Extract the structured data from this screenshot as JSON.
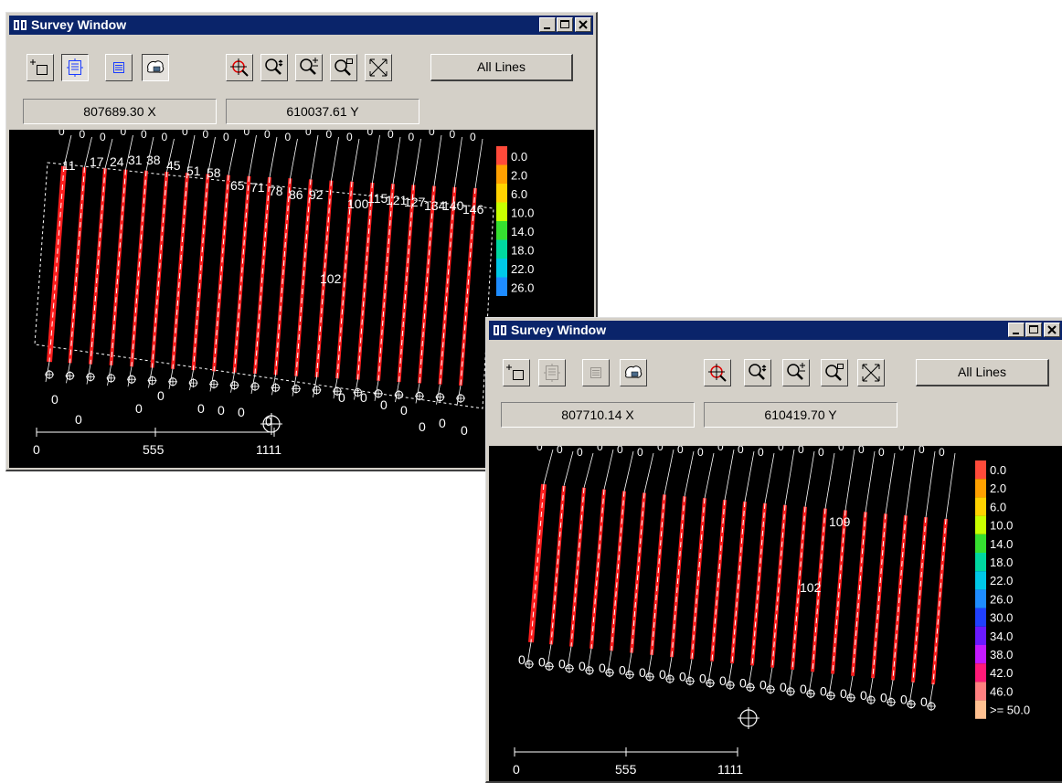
{
  "windows": [
    {
      "title": "Survey Window",
      "all_lines_label": "All Lines",
      "x_coord": "807689.30 X",
      "y_coord": "610037.61 Y",
      "toolbar_pressed": [
        false,
        true,
        false,
        true
      ],
      "line_numbers": [
        "11",
        "17",
        "24",
        "31",
        "38",
        "45",
        "51",
        "58",
        "65",
        "71",
        "78",
        "86",
        "92",
        "100",
        "115",
        "121",
        "127",
        "134",
        "140",
        "146"
      ],
      "center_label": "102",
      "end_label": "0",
      "legend": [
        "0.0",
        "2.0",
        "6.0",
        "10.0",
        "14.0",
        "18.0",
        "22.0",
        "26.0"
      ],
      "scale_bar": [
        "0",
        "555",
        "1111"
      ]
    },
    {
      "title": "Survey Window",
      "all_lines_label": "All Lines",
      "x_coord": "807710.14 X",
      "y_coord": "610419.70 Y",
      "toolbar_pressed": [
        false,
        false,
        false,
        false
      ],
      "line_label_a": "109",
      "center_label": "102",
      "end_label": "0",
      "legend": [
        "0.0",
        "2.0",
        "6.0",
        "10.0",
        "14.0",
        "18.0",
        "22.0",
        "26.0",
        "30.0",
        "34.0",
        "38.0",
        "42.0",
        "46.0",
        ">= 50.0"
      ],
      "scale_bar": [
        "0",
        "555",
        "1111"
      ]
    }
  ],
  "colors": {
    "titlebar": "#0a246a",
    "track": "#ff1e1e",
    "legend": [
      "#ff4a3a",
      "#ffa000",
      "#ffd200",
      "#c8ff00",
      "#36e030",
      "#00d8a0",
      "#00c8e8",
      "#1e8cff",
      "#2040ff",
      "#6a1aff",
      "#c41aff",
      "#ff1a78",
      "#ff8080",
      "#ffc090"
    ]
  },
  "icons": [
    "add-frame-icon",
    "select-frame-icon",
    "list-icon",
    "layers-icon",
    "pan-crosshair-icon",
    "zoom-move-icon",
    "zoom-in-out-icon",
    "zoom-box-icon",
    "zoom-extent-icon"
  ]
}
